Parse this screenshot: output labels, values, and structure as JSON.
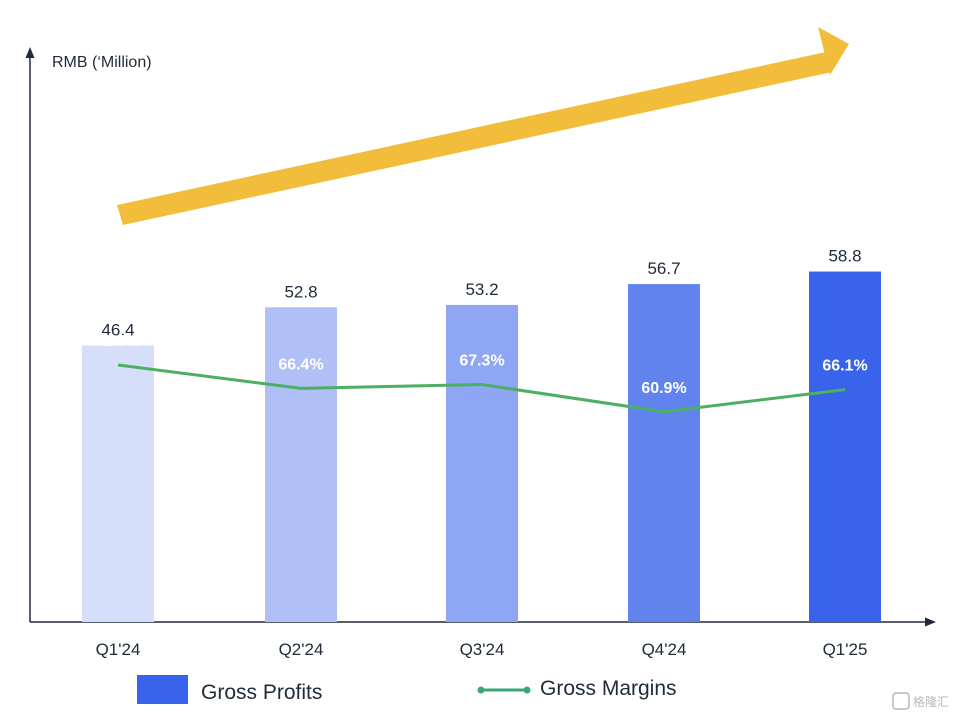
{
  "chart_data": {
    "type": "bar",
    "y_unit_label": "RMB (‘Million)",
    "categories": [
      "Q1'24",
      "Q2'24",
      "Q3'24",
      "Q4'24",
      "Q1'25"
    ],
    "series": [
      {
        "name": "Gross Profits",
        "kind": "bar",
        "values": [
          46.4,
          52.8,
          53.2,
          56.7,
          58.8
        ],
        "labels": [
          "46.4",
          "52.8",
          "53.2",
          "56.7",
          "58.8"
        ],
        "colors": [
          "#d6dffa",
          "#b0c0f6",
          "#8ea6f3",
          "#6183ee",
          "#3a63ec"
        ]
      },
      {
        "name": "Gross Margins",
        "kind": "line",
        "values": [
          71.9,
          66.4,
          67.3,
          60.9,
          66.1
        ],
        "labels": [
          "71.9%",
          "66.4%",
          "67.3%",
          "60.9%",
          "66.1%"
        ],
        "color": "#4caf63"
      }
    ],
    "legend": {
      "position": "bottom",
      "items": [
        {
          "label": "Gross Profits",
          "marker": "box",
          "color": "#3a63ec"
        },
        {
          "label": "Gross Margins",
          "marker": "line",
          "color": "#3aa67a"
        }
      ]
    },
    "decoration": {
      "trend_arrow_color": "#f2bd3a"
    },
    "grid": false
  },
  "watermark": {
    "text": "格隆汇"
  }
}
